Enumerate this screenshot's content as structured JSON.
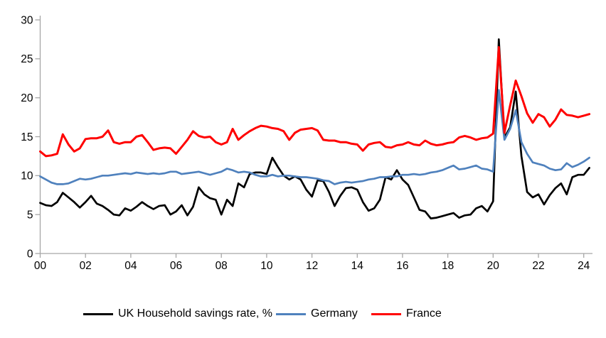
{
  "chart_data": {
    "type": "line",
    "title": "",
    "xlabel": "",
    "ylabel": "",
    "x_unit": "quarter",
    "x_start": "2000Q1",
    "x_end": "2024Q2",
    "ylim": [
      0,
      30
    ],
    "yticks": [
      0,
      5,
      10,
      15,
      20,
      25,
      30
    ],
    "xtick_labels": [
      "00",
      "02",
      "04",
      "06",
      "08",
      "10",
      "12",
      "14",
      "16",
      "18",
      "20",
      "22",
      "24"
    ],
    "grid": false,
    "legend_position": "bottom",
    "colors": {
      "axis": "#a6a6a6",
      "tick_text": "#000000",
      "background": "#ffffff"
    },
    "series": [
      {
        "name": "UK Household savings rate, %",
        "color": "#000000",
        "stroke_width": 2.7,
        "values": [
          6.5,
          6.2,
          6.1,
          6.6,
          7.8,
          7.2,
          6.6,
          5.9,
          6.6,
          7.4,
          6.4,
          6.1,
          5.6,
          5.0,
          4.9,
          5.8,
          5.5,
          6.0,
          6.6,
          6.1,
          5.7,
          6.1,
          6.2,
          5.0,
          5.4,
          6.2,
          4.9,
          6.0,
          8.5,
          7.6,
          7.1,
          6.9,
          5.0,
          6.9,
          6.1,
          9.0,
          8.5,
          10.2,
          10.4,
          10.4,
          10.2,
          12.3,
          11.1,
          10.0,
          9.5,
          9.9,
          9.5,
          8.2,
          7.3,
          9.4,
          9.3,
          7.9,
          6.1,
          7.4,
          8.4,
          8.5,
          8.2,
          6.6,
          5.5,
          5.8,
          6.9,
          9.8,
          9.5,
          10.7,
          9.5,
          8.8,
          7.2,
          5.6,
          5.4,
          4.5,
          4.6,
          4.8,
          5.0,
          5.2,
          4.6,
          4.9,
          5.0,
          5.8,
          6.1,
          5.4,
          6.7,
          27.5,
          14.9,
          16.2,
          20.8,
          12.5,
          7.9,
          7.2,
          7.6,
          6.3,
          7.5,
          8.4,
          9.0,
          7.6,
          9.8,
          10.1,
          10.1,
          11.0
        ]
      },
      {
        "name": "Germany",
        "color": "#4f81bd",
        "stroke_width": 2.7,
        "values": [
          9.9,
          9.5,
          9.1,
          8.9,
          8.9,
          9.0,
          9.3,
          9.6,
          9.5,
          9.6,
          9.8,
          10.0,
          10.0,
          10.1,
          10.2,
          10.3,
          10.2,
          10.4,
          10.3,
          10.2,
          10.3,
          10.2,
          10.3,
          10.5,
          10.5,
          10.2,
          10.3,
          10.4,
          10.5,
          10.3,
          10.1,
          10.3,
          10.5,
          10.9,
          10.7,
          10.4,
          10.5,
          10.4,
          10.1,
          9.9,
          9.9,
          10.1,
          9.9,
          10.0,
          10.0,
          9.9,
          9.8,
          9.8,
          9.7,
          9.6,
          9.4,
          9.3,
          8.9,
          9.1,
          9.2,
          9.1,
          9.2,
          9.3,
          9.5,
          9.6,
          9.8,
          9.8,
          9.9,
          9.9,
          10.1,
          10.1,
          10.2,
          10.1,
          10.2,
          10.4,
          10.5,
          10.7,
          11.0,
          11.3,
          10.8,
          10.9,
          11.1,
          11.3,
          10.9,
          10.8,
          10.5,
          21.0,
          14.6,
          16.0,
          18.4,
          14.3,
          12.8,
          11.7,
          11.5,
          11.3,
          10.9,
          10.7,
          10.8,
          11.6,
          11.1,
          11.4,
          11.8,
          12.3
        ]
      },
      {
        "name": "France",
        "color": "#ff0000",
        "stroke_width": 3.0,
        "values": [
          13.1,
          12.5,
          12.6,
          12.8,
          15.3,
          14.0,
          13.1,
          13.5,
          14.7,
          14.8,
          14.8,
          15.0,
          15.8,
          14.3,
          14.1,
          14.3,
          14.3,
          15.0,
          15.2,
          14.3,
          13.3,
          13.5,
          13.6,
          13.5,
          12.8,
          13.7,
          14.6,
          15.7,
          15.1,
          14.9,
          15.0,
          14.3,
          14.0,
          14.3,
          16.0,
          14.6,
          15.2,
          15.7,
          16.1,
          16.4,
          16.3,
          16.1,
          16.0,
          15.7,
          14.6,
          15.5,
          15.9,
          16.0,
          16.1,
          15.8,
          14.6,
          14.5,
          14.5,
          14.3,
          14.3,
          14.1,
          14.0,
          13.2,
          14.0,
          14.2,
          14.3,
          13.7,
          13.6,
          13.9,
          14.0,
          14.3,
          14.0,
          13.9,
          14.5,
          14.1,
          13.9,
          14.0,
          14.2,
          14.3,
          14.9,
          15.1,
          14.9,
          14.6,
          14.8,
          14.9,
          15.4,
          26.5,
          15.5,
          19.0,
          22.2,
          20.2,
          18.0,
          16.8,
          17.9,
          17.5,
          16.3,
          17.2,
          18.5,
          17.8,
          17.7,
          17.5,
          17.7,
          17.9
        ]
      }
    ]
  },
  "legend": {
    "items": [
      {
        "label": "UK Household savings rate, %"
      },
      {
        "label": "Germany"
      },
      {
        "label": "France"
      }
    ]
  }
}
